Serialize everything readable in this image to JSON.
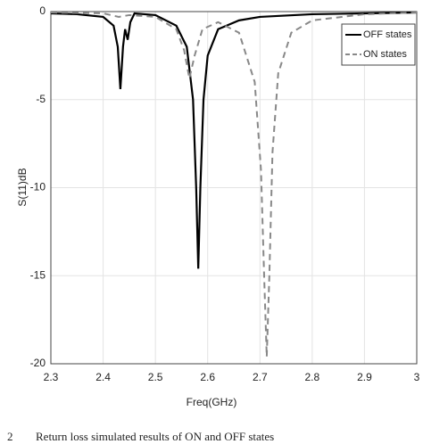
{
  "chart_data": {
    "type": "line",
    "x_label": "Freq(GHz)",
    "y_label": "S(11)dB",
    "caption_number": "2",
    "caption": "Return loss simulated results of ON and OFF states",
    "xlim": [
      2.3,
      3
    ],
    "xticks": [
      2.3,
      2.4,
      2.5,
      2.6,
      2.7,
      2.8,
      2.9,
      3
    ],
    "ylim": [
      -20,
      0
    ],
    "yticks": [
      0,
      -5,
      -10,
      -15,
      -20
    ],
    "grid": true,
    "legend": "upper right",
    "series": [
      {
        "name": "OFF states",
        "color": "#000000",
        "dashed": false,
        "x": [
          2.3,
          2.35,
          2.4,
          2.42,
          2.428,
          2.433,
          2.438,
          2.442,
          2.447,
          2.452,
          2.46,
          2.5,
          2.54,
          2.56,
          2.572,
          2.578,
          2.582,
          2.586,
          2.592,
          2.6,
          2.62,
          2.66,
          2.7,
          2.8,
          2.9,
          3.0
        ],
        "values": [
          -0.1,
          -0.15,
          -0.3,
          -0.8,
          -2.0,
          -4.4,
          -2.0,
          -1.0,
          -1.6,
          -0.6,
          -0.1,
          -0.2,
          -0.8,
          -2.0,
          -5.0,
          -10.0,
          -14.6,
          -10.0,
          -5.0,
          -2.5,
          -1.0,
          -0.5,
          -0.3,
          -0.15,
          -0.1,
          -0.05
        ]
      },
      {
        "name": "ON states",
        "color": "#888888",
        "dashed": true,
        "x": [
          2.3,
          2.4,
          2.43,
          2.45,
          2.5,
          2.54,
          2.555,
          2.565,
          2.575,
          2.59,
          2.62,
          2.66,
          2.69,
          2.702,
          2.708,
          2.713,
          2.718,
          2.724,
          2.735,
          2.76,
          2.8,
          2.9,
          3.0
        ],
        "values": [
          -0.05,
          -0.1,
          -0.3,
          -0.2,
          -0.3,
          -1.0,
          -2.2,
          -3.8,
          -2.5,
          -1.0,
          -0.6,
          -1.2,
          -4.0,
          -9.0,
          -15.0,
          -19.6,
          -15.0,
          -8.0,
          -3.5,
          -1.2,
          -0.5,
          -0.15,
          -0.05
        ]
      }
    ]
  }
}
